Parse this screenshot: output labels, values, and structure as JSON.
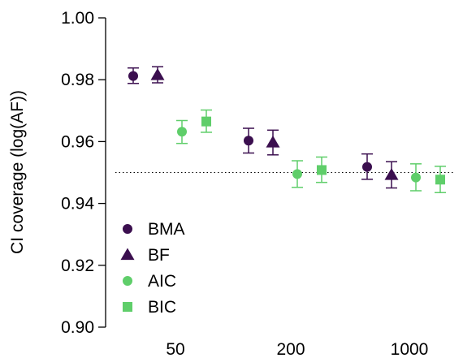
{
  "chart_data": {
    "type": "scatter",
    "ylabel": "CI coverage (log(AF))",
    "xlabel": "",
    "ylim": [
      0.9,
      1.0
    ],
    "yticks": [
      "0.90",
      "0.92",
      "0.94",
      "0.96",
      "0.98",
      "1.00"
    ],
    "categories": [
      "50",
      "200",
      "1000"
    ],
    "reference_line": 0.95,
    "legend_position": "bottom-left",
    "series": [
      {
        "name": "BMA",
        "marker": "circle",
        "color": "#3b0f4f",
        "values": [
          0.9812,
          0.9603,
          0.9518
        ],
        "lower": [
          0.9788,
          0.9563,
          0.9478
        ],
        "upper": [
          0.9838,
          0.9643,
          0.956
        ]
      },
      {
        "name": "BF",
        "marker": "triangle",
        "color": "#3b0f4f",
        "values": [
          0.9815,
          0.9597,
          0.9492
        ],
        "lower": [
          0.979,
          0.9557,
          0.945
        ],
        "upper": [
          0.9842,
          0.9637,
          0.9535
        ]
      },
      {
        "name": "AIC",
        "marker": "circle",
        "color": "#5fce6a",
        "values": [
          0.9632,
          0.9495,
          0.9484
        ],
        "lower": [
          0.9594,
          0.9452,
          0.9441
        ],
        "upper": [
          0.9668,
          0.9538,
          0.9528
        ]
      },
      {
        "name": "BIC",
        "marker": "square",
        "color": "#5fce6a",
        "values": [
          0.9665,
          0.9508,
          0.9477
        ],
        "lower": [
          0.963,
          0.9468,
          0.9435
        ],
        "upper": [
          0.9702,
          0.955,
          0.952
        ]
      }
    ]
  }
}
